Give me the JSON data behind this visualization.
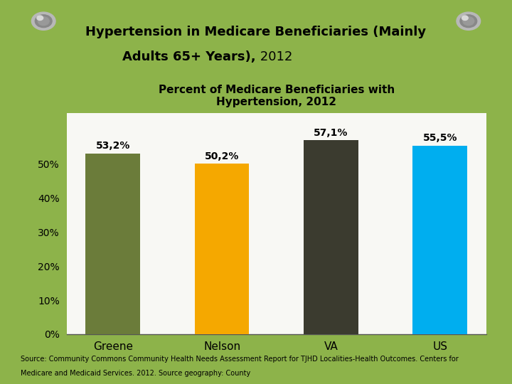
{
  "categories": [
    "Greene",
    "Nelson",
    "VA",
    "US"
  ],
  "values": [
    53.2,
    50.2,
    57.1,
    55.5
  ],
  "bar_colors": [
    "#6b7c3a",
    "#f5a800",
    "#3b3b2f",
    "#00aeef"
  ],
  "value_labels": [
    "53,2%",
    "50,2%",
    "57,1%",
    "55,5%"
  ],
  "chart_title_line1": "Percent of Medicare Beneficiaries with",
  "chart_title_line2": "Hypertension, 2012",
  "main_title_line1": "Hypertension in Medicare Beneficiaries (Mainly",
  "main_title_line2_bold": "Adults 65+ Years),",
  "main_title_line2_normal": " 2012",
  "source_text_line1": "Source: Community Commons Community Health Needs Assessment Report for TJHD Localities-Health Outcomes. Centers for",
  "source_text_line2": "Medicare and Medicaid Services. 2012. Source geography: County",
  "ylim": [
    0,
    65
  ],
  "yticks": [
    0,
    10,
    20,
    30,
    40,
    50
  ],
  "ytick_labels": [
    "0%",
    "10%",
    "20%",
    "30%",
    "40%",
    "50%"
  ],
  "background_color": "#8db34a",
  "paper_color": "#f8f8f4",
  "bar_width": 0.5,
  "pin_color_outer": "#b0b0b0",
  "pin_color_inner": "#888888",
  "pin_color_highlight": "#e0e0e0"
}
